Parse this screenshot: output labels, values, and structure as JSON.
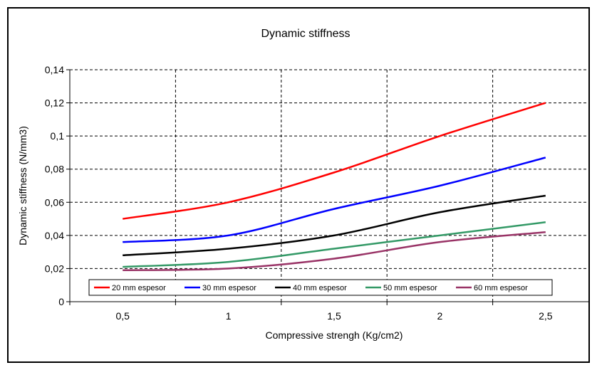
{
  "chart_data": {
    "type": "line",
    "title": "Dynamic stiffness",
    "xlabel": "Compressive strengh (Kg/cm2)",
    "ylabel": "Dynamic stiffness (N/mm3)",
    "x": [
      0.5,
      1,
      1.5,
      2,
      2.5
    ],
    "x_tick_labels": [
      "0,5",
      "1",
      "1,5",
      "2",
      "2,5"
    ],
    "y_ticks": [
      0,
      0.02,
      0.04,
      0.06,
      0.08,
      0.1,
      0.12,
      0.14
    ],
    "y_tick_labels": [
      "0",
      "0,02",
      "0,04",
      "0,06",
      "0,08",
      "0,1",
      "0,12",
      "0,14"
    ],
    "ylim": [
      0,
      0.14
    ],
    "xlim": [
      0.25,
      2.75
    ],
    "grid": true,
    "legend_position": "bottom",
    "series": [
      {
        "name": "20 mm espesor",
        "color": "#ff0000",
        "values": [
          0.05,
          0.06,
          0.078,
          0.1,
          0.12
        ]
      },
      {
        "name": "30 mm espesor",
        "color": "#0000ff",
        "values": [
          0.036,
          0.04,
          0.056,
          0.07,
          0.087
        ]
      },
      {
        "name": "40 mm espesor",
        "color": "#000000",
        "values": [
          0.028,
          0.032,
          0.04,
          0.054,
          0.064
        ]
      },
      {
        "name": "50 mm espesor",
        "color": "#339966",
        "values": [
          0.021,
          0.024,
          0.032,
          0.04,
          0.048
        ]
      },
      {
        "name": "60 mm espesor",
        "color": "#993366",
        "values": [
          0.019,
          0.02,
          0.026,
          0.036,
          0.042
        ]
      }
    ]
  }
}
